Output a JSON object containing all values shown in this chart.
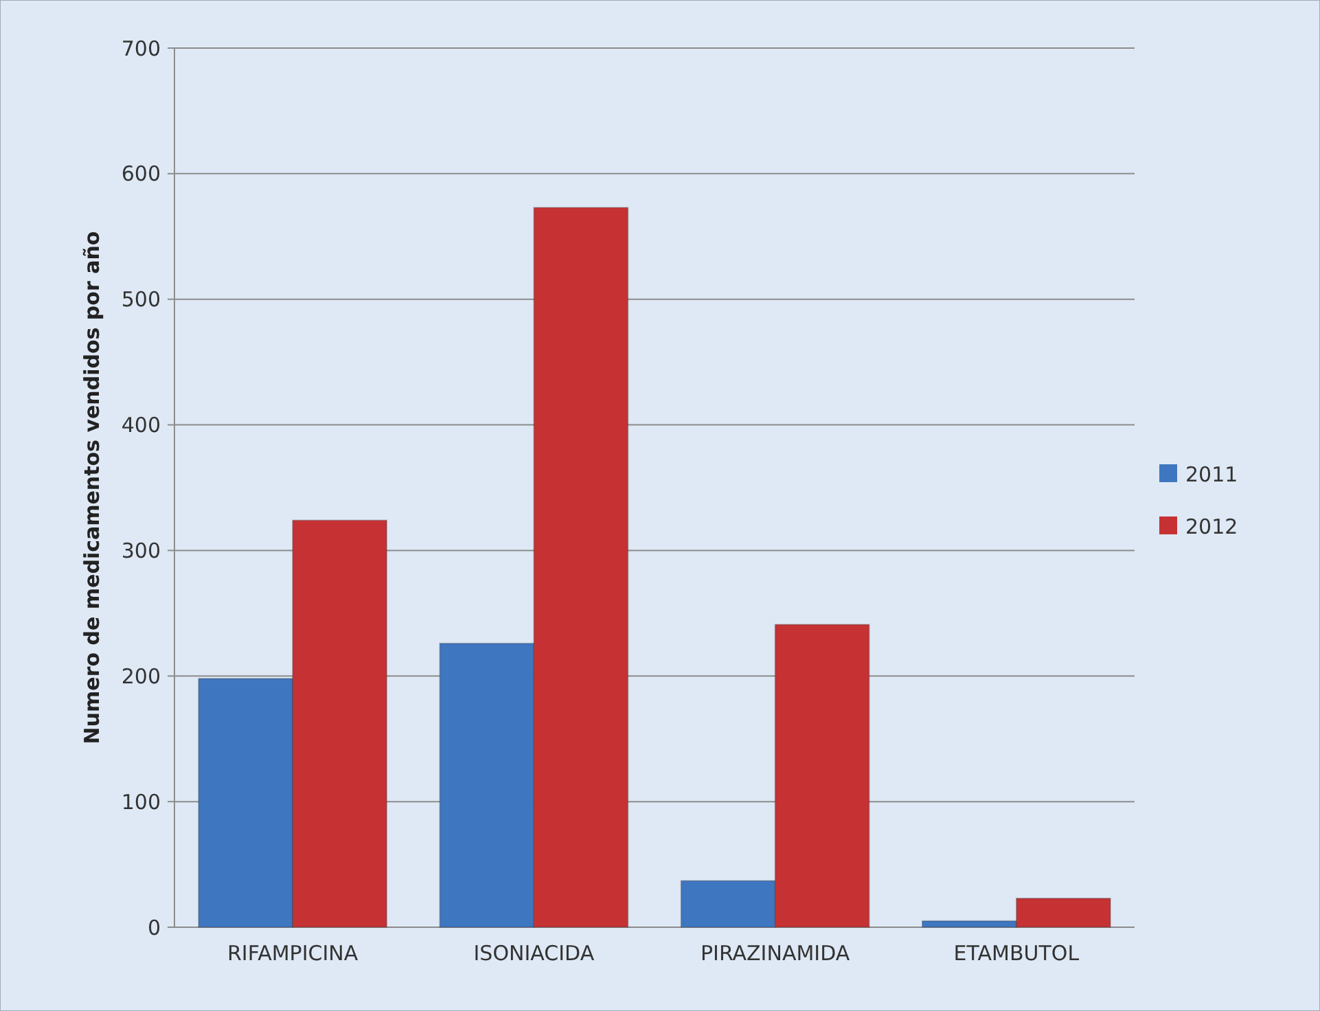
{
  "chart_data": {
    "type": "bar",
    "ylabel": "Numero de medicamentos vendidos por  año",
    "categories": [
      "RIFAMPICINA",
      "ISONIACIDA",
      "PIRAZINAMIDA",
      "ETAMBUTOL"
    ],
    "series": [
      {
        "name": "2011",
        "color": "#3f76c0",
        "values": [
          198,
          226,
          37,
          5
        ]
      },
      {
        "name": "2012",
        "color": "#c63234",
        "values": [
          324,
          573,
          241,
          23
        ]
      }
    ],
    "ylim": [
      0,
      700
    ],
    "yticks": [
      0,
      100,
      200,
      300,
      400,
      500,
      600,
      700
    ],
    "grid": "y",
    "legend": "right"
  }
}
